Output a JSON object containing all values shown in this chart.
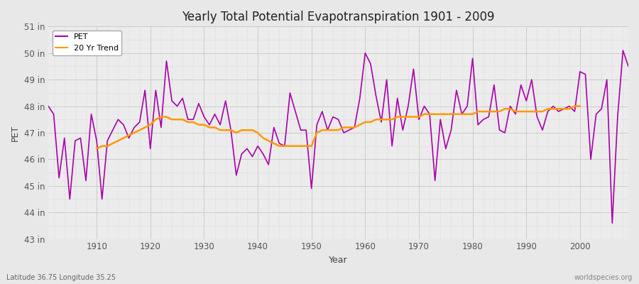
{
  "title": "Yearly Total Potential Evapotranspiration 1901 - 2009",
  "xlabel": "Year",
  "ylabel": "PET",
  "subtitle": "Latitude 36.75 Longitude 35.25",
  "watermark": "worldspecies.org",
  "pet_color": "#aa00aa",
  "trend_color": "#ff9900",
  "background_color": "#e8e8e8",
  "plot_bg_color": "#f0f0f0",
  "ylim": [
    43,
    51
  ],
  "yticks": [
    43,
    44,
    45,
    46,
    47,
    48,
    49,
    50,
    51
  ],
  "ytick_labels": [
    "43 in",
    "44 in",
    "45 in",
    "46 in",
    "47 in",
    "48 in",
    "49 in",
    "50 in",
    "51 in"
  ],
  "years": [
    1901,
    1902,
    1903,
    1904,
    1905,
    1906,
    1907,
    1908,
    1909,
    1910,
    1911,
    1912,
    1913,
    1914,
    1915,
    1916,
    1917,
    1918,
    1919,
    1920,
    1921,
    1922,
    1923,
    1924,
    1925,
    1926,
    1927,
    1928,
    1929,
    1930,
    1931,
    1932,
    1933,
    1934,
    1935,
    1936,
    1937,
    1938,
    1939,
    1940,
    1941,
    1942,
    1943,
    1944,
    1945,
    1946,
    1947,
    1948,
    1949,
    1950,
    1951,
    1952,
    1953,
    1954,
    1955,
    1956,
    1957,
    1958,
    1959,
    1960,
    1961,
    1962,
    1963,
    1964,
    1965,
    1966,
    1967,
    1968,
    1969,
    1970,
    1971,
    1972,
    1973,
    1974,
    1975,
    1976,
    1977,
    1978,
    1979,
    1980,
    1981,
    1982,
    1983,
    1984,
    1985,
    1986,
    1987,
    1988,
    1989,
    1990,
    1991,
    1992,
    1993,
    1994,
    1995,
    1996,
    1997,
    1998,
    1999,
    2000,
    2001,
    2002,
    2003,
    2004,
    2005,
    2006,
    2007,
    2008,
    2009
  ],
  "pet_values": [
    48.0,
    47.7,
    45.3,
    46.8,
    44.5,
    46.7,
    46.8,
    45.2,
    47.7,
    46.7,
    44.5,
    46.7,
    47.1,
    47.5,
    47.3,
    46.8,
    47.2,
    47.4,
    48.6,
    46.4,
    48.6,
    47.2,
    49.7,
    48.2,
    48.0,
    48.3,
    47.5,
    47.5,
    48.1,
    47.6,
    47.3,
    47.7,
    47.3,
    48.2,
    47.1,
    45.4,
    46.2,
    46.4,
    46.1,
    46.5,
    46.2,
    45.8,
    47.2,
    46.6,
    46.5,
    48.5,
    47.8,
    47.1,
    47.1,
    44.9,
    47.3,
    47.8,
    47.1,
    47.6,
    47.5,
    47.0,
    47.1,
    47.2,
    48.3,
    50.0,
    49.6,
    48.4,
    47.4,
    49.0,
    46.5,
    48.3,
    47.1,
    48.0,
    49.4,
    47.5,
    48.0,
    47.7,
    45.2,
    47.5,
    46.4,
    47.1,
    48.6,
    47.7,
    48.0,
    49.8,
    47.3,
    47.5,
    47.6,
    48.8,
    47.1,
    47.0,
    48.0,
    47.7,
    48.8,
    48.2,
    49.0,
    47.6,
    47.1,
    47.8,
    48.0,
    47.8,
    47.9,
    48.0,
    47.8,
    49.3,
    49.2,
    46.0,
    47.7,
    47.9,
    49.0,
    43.6,
    47.6,
    50.1,
    49.5
  ],
  "trend_years": [
    1910,
    1911,
    1912,
    1913,
    1914,
    1915,
    1916,
    1917,
    1918,
    1919,
    1920,
    1921,
    1922,
    1923,
    1924,
    1925,
    1926,
    1927,
    1928,
    1929,
    1930,
    1931,
    1932,
    1933,
    1934,
    1935,
    1936,
    1937,
    1938,
    1939,
    1940,
    1941,
    1942,
    1943,
    1944,
    1945,
    1946,
    1947,
    1948,
    1949,
    1950,
    1951,
    1952,
    1953,
    1954,
    1955,
    1956,
    1957,
    1958,
    1959,
    1960,
    1961,
    1962,
    1963,
    1964,
    1965,
    1966,
    1967,
    1968,
    1969,
    1970,
    1971,
    1972,
    1973,
    1974,
    1975,
    1976,
    1977,
    1978,
    1979,
    1980,
    1981,
    1982,
    1983,
    1984,
    1985,
    1986,
    1987,
    1988,
    1989,
    1990,
    1991,
    1992,
    1993,
    1994,
    1995,
    1996,
    1997,
    1998,
    1999,
    2000
  ],
  "trend_values": [
    46.4,
    46.5,
    46.5,
    46.6,
    46.7,
    46.8,
    46.9,
    47.0,
    47.1,
    47.2,
    47.3,
    47.5,
    47.6,
    47.6,
    47.5,
    47.5,
    47.5,
    47.4,
    47.4,
    47.3,
    47.3,
    47.2,
    47.2,
    47.1,
    47.1,
    47.1,
    47.0,
    47.1,
    47.1,
    47.1,
    47.0,
    46.8,
    46.7,
    46.6,
    46.5,
    46.5,
    46.5,
    46.5,
    46.5,
    46.5,
    46.5,
    47.0,
    47.1,
    47.1,
    47.1,
    47.1,
    47.2,
    47.2,
    47.2,
    47.3,
    47.4,
    47.4,
    47.5,
    47.5,
    47.5,
    47.5,
    47.6,
    47.6,
    47.6,
    47.6,
    47.6,
    47.7,
    47.7,
    47.7,
    47.7,
    47.7,
    47.7,
    47.7,
    47.7,
    47.7,
    47.7,
    47.8,
    47.8,
    47.8,
    47.8,
    47.8,
    47.9,
    47.9,
    47.8,
    47.8,
    47.8,
    47.8,
    47.8,
    47.8,
    47.9,
    47.9,
    47.9,
    47.9,
    47.9,
    48.0,
    48.0
  ]
}
